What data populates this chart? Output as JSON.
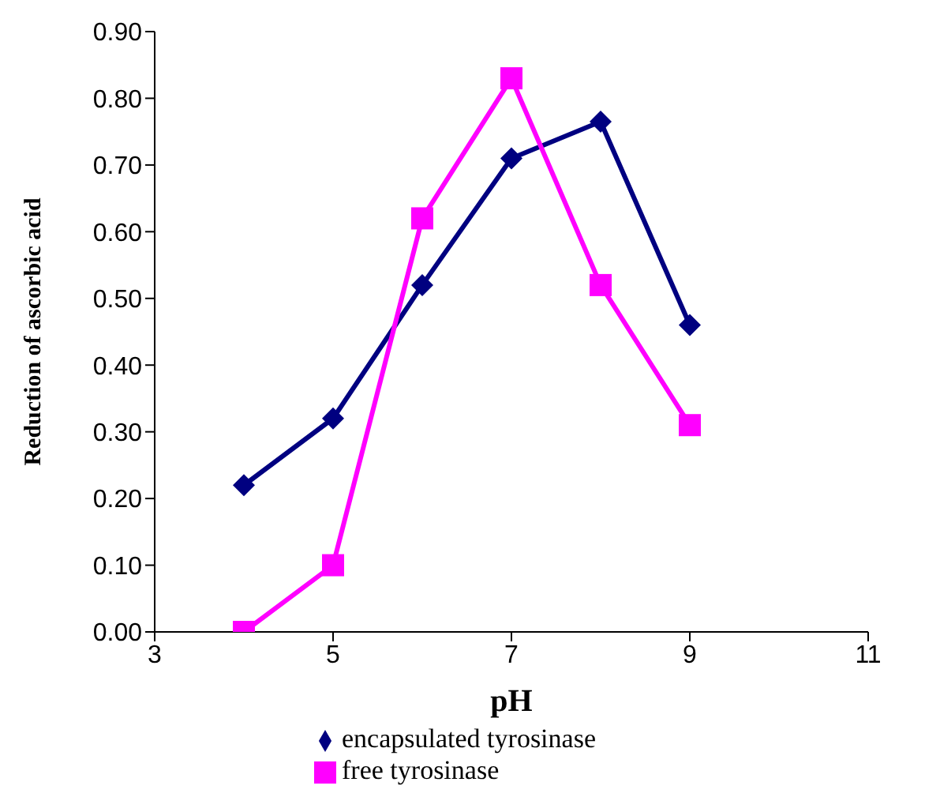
{
  "chart_data": {
    "type": "line",
    "xlabel": "pH",
    "ylabel": "Reduction of ascorbic acid",
    "x": [
      4,
      5,
      6,
      7,
      8,
      9
    ],
    "series": [
      {
        "name": "encapsulated tyrosinase",
        "color": "#000080",
        "marker": "diamond",
        "values": [
          0.22,
          0.32,
          0.52,
          0.71,
          0.765,
          0.46
        ]
      },
      {
        "name": "free tyrosinase",
        "color": "#ff00ff",
        "marker": "square",
        "values": [
          0.0,
          0.1,
          0.62,
          0.83,
          0.52,
          0.31
        ]
      }
    ],
    "xlim": [
      3,
      11
    ],
    "xticks": [
      3,
      5,
      7,
      9,
      11
    ],
    "ylim": [
      0,
      0.9
    ],
    "yticks": [
      {
        "value": 0,
        "label": "0.00"
      },
      {
        "value": 0.1,
        "label": "0.10"
      },
      {
        "value": 0.2,
        "label": "0.20"
      },
      {
        "value": 0.3,
        "label": "0.30"
      },
      {
        "value": 0.4,
        "label": "0.40"
      },
      {
        "value": 0.5,
        "label": "0.50"
      },
      {
        "value": 0.6,
        "label": "0.60"
      },
      {
        "value": 0.7,
        "label": "0.70"
      },
      {
        "value": 0.8,
        "label": "0.80"
      },
      {
        "value": 0.9,
        "label": "0.90"
      }
    ],
    "grid": false,
    "legend": "bottom",
    "line_style": "solid"
  }
}
